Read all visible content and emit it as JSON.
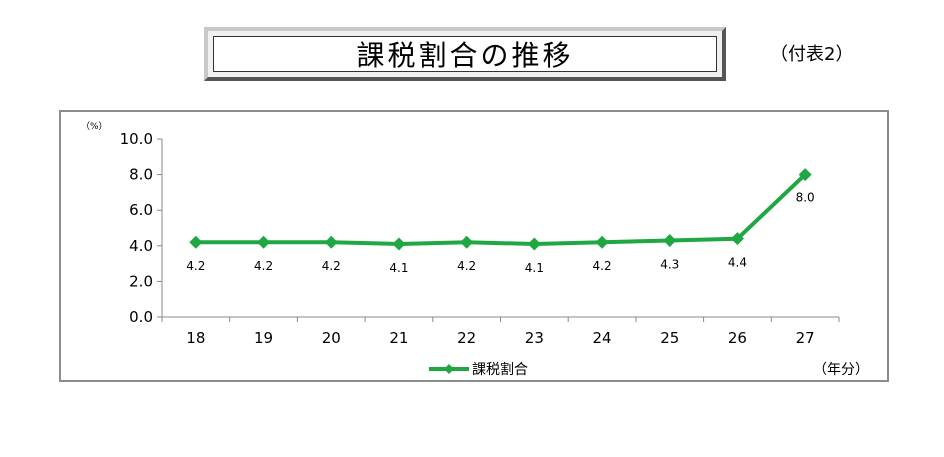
{
  "title": "課税割合の推移",
  "appendix_label": "（付表2）",
  "chart_data": {
    "type": "line",
    "yunit": "（%）",
    "xunit": "（年分）",
    "categories": [
      "18",
      "19",
      "20",
      "21",
      "22",
      "23",
      "24",
      "25",
      "26",
      "27"
    ],
    "series": [
      {
        "name": "課税割合",
        "values": [
          4.2,
          4.2,
          4.2,
          4.1,
          4.2,
          4.1,
          4.2,
          4.3,
          4.4,
          8.0
        ],
        "labels": [
          "4.2",
          "4.2",
          "4.2",
          "4.1",
          "4.2",
          "4.1",
          "4.2",
          "4.3",
          "4.4",
          "8.0"
        ],
        "color": "#1fa743"
      }
    ],
    "ylim": [
      0,
      10
    ],
    "yticks": [
      "0.0",
      "2.0",
      "4.0",
      "6.0",
      "8.0",
      "10.0"
    ],
    "ytick_values": [
      0,
      2,
      4,
      6,
      8,
      10
    ],
    "grid": false,
    "legend": "bottom"
  }
}
